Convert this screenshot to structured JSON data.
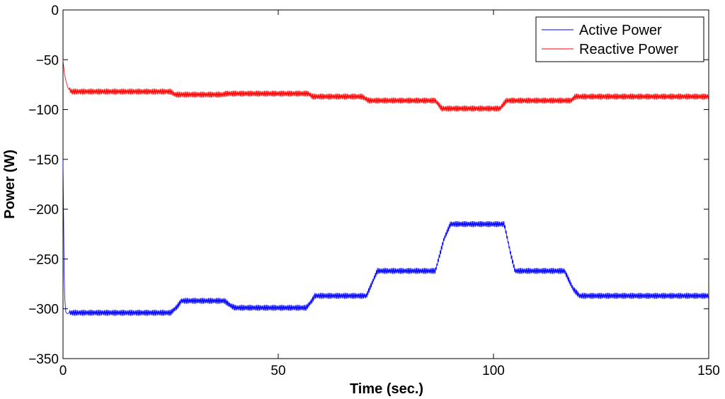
{
  "chart_data": {
    "type": "line",
    "title": "",
    "xlabel": "Time (sec.)",
    "ylabel": "Power (W)",
    "xlim": [
      0,
      150
    ],
    "ylim": [
      -350,
      0
    ],
    "xticks": [
      0,
      50,
      100,
      150
    ],
    "yticks": [
      0,
      -50,
      -100,
      -150,
      -200,
      -250,
      -300,
      -350
    ],
    "grid": false,
    "legend_position": "top-right",
    "series": [
      {
        "name": "Active Power",
        "color": "#0000ff",
        "ripple": 3,
        "x": [
          0,
          0.3,
          0.6,
          1.0,
          1.5,
          25,
          26.5,
          27.5,
          37.5,
          39,
          40,
          56.5,
          57.8,
          58.5,
          70.5,
          72,
          73,
          86.5,
          88.5,
          90,
          102.5,
          104,
          105,
          116.5,
          118.5,
          120,
          150
        ],
        "y": [
          -150,
          -280,
          -303,
          -305,
          -304,
          -304,
          -298,
          -292,
          -292,
          -297,
          -299,
          -299,
          -292,
          -287,
          -287,
          -272,
          -262,
          -262,
          -230,
          -215,
          -215,
          -245,
          -262,
          -262,
          -280,
          -287,
          -287
        ]
      },
      {
        "name": "Reactive Power",
        "color": "#ff0000",
        "ripple": 3,
        "x": [
          0,
          0.3,
          0.6,
          1.2,
          2,
          25,
          26,
          37,
          38,
          57,
          58,
          69.5,
          71,
          86.5,
          88,
          101.5,
          103,
          118,
          119,
          150
        ],
        "y": [
          -50,
          -63,
          -70,
          -79,
          -82,
          -82,
          -85,
          -85,
          -84,
          -84,
          -87,
          -87,
          -91,
          -91,
          -99,
          -99,
          -91,
          -91,
          -87,
          -87
        ]
      }
    ]
  }
}
